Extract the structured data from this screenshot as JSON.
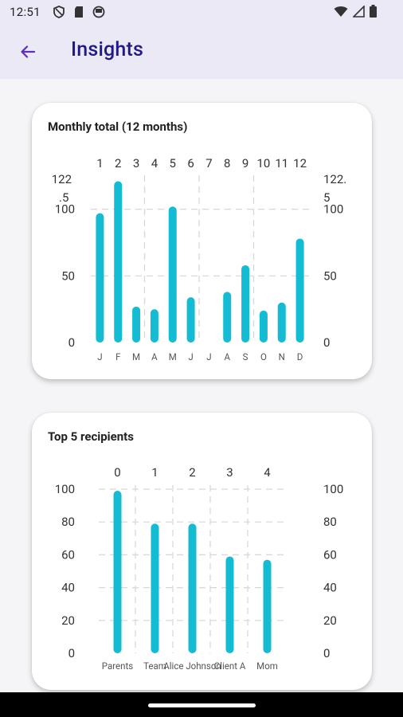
{
  "status_bar": {
    "time": "12:51",
    "left_icons": [
      "shield-icon",
      "sd-card-icon",
      "vpn-icon"
    ],
    "right_icons": [
      "wifi-icon",
      "signal-icon",
      "battery-icon"
    ]
  },
  "app_bar": {
    "title": "Insights",
    "back_icon": "arrow-back-icon"
  },
  "colors": {
    "bar": "#14bcd3",
    "app_bar_bg": "#ece9f6",
    "title": "#1f1a8a",
    "grid": "#d6d6d6"
  },
  "monthly_card": {
    "title": "Monthly total (12 months)"
  },
  "recipients_card": {
    "title": "Top 5 recipients"
  },
  "chart_data": [
    {
      "type": "bar",
      "title": "Monthly total (12 months)",
      "categories": [
        "J",
        "F",
        "M",
        "A",
        "M",
        "J",
        "J",
        "A",
        "S",
        "O",
        "N",
        "D"
      ],
      "top_labels": [
        "1",
        "2",
        "3",
        "4",
        "5",
        "6",
        "7",
        "8",
        "9",
        "10",
        "11",
        "12"
      ],
      "values": [
        97,
        121,
        27,
        25,
        102,
        34,
        0,
        38,
        58,
        24,
        30,
        78
      ],
      "ylim": [
        0,
        122.5
      ],
      "yticks": [
        "0",
        "50",
        "100"
      ],
      "ymax_label_left": [
        "122",
        ".5"
      ],
      "ymax_label_right": [
        "122.",
        "5"
      ],
      "grid": true
    },
    {
      "type": "bar",
      "title": "Top 5 recipients",
      "categories": [
        "Parents",
        "Team",
        "Alice Johnson",
        "Client A",
        "Mom"
      ],
      "top_labels": [
        "0",
        "1",
        "2",
        "3",
        "4"
      ],
      "values": [
        99,
        79,
        79,
        59,
        57
      ],
      "ylim": [
        0,
        100
      ],
      "yticks": [
        "0",
        "20",
        "40",
        "60",
        "80",
        "100"
      ],
      "grid": true
    }
  ]
}
